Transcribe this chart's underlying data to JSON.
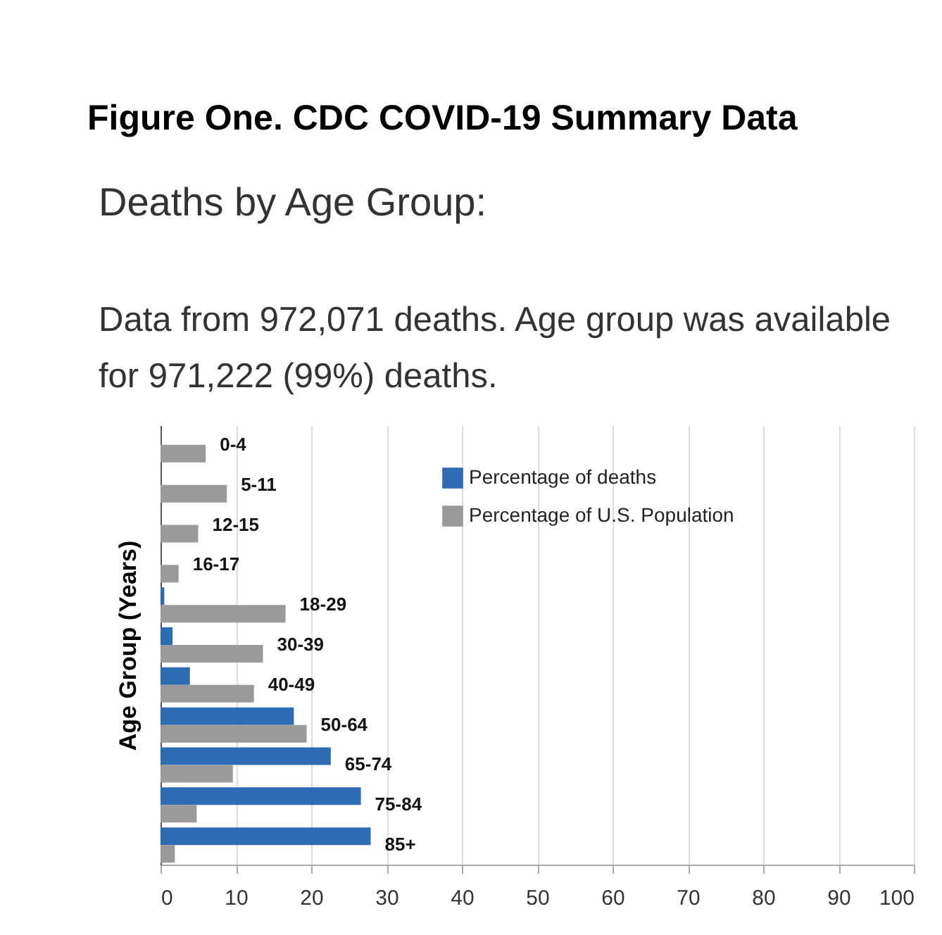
{
  "chart_data": {
    "type": "bar",
    "orientation": "horizontal",
    "title": "Figure One.  CDC COVID-19 Summary Data",
    "subtitle": "Deaths by Age Group:",
    "annotations": [
      "Data from 972,071 deaths. Age group was available for 971,222 (99%) deaths."
    ],
    "ylabel": "Age Group (Years)",
    "categories": [
      "0-4",
      "5-11",
      "12-15",
      "16-17",
      "18-29",
      "30-39",
      "40-49",
      "50-64",
      "65-74",
      "75-84",
      "85+"
    ],
    "series": [
      {
        "name": "Percentage of deaths",
        "color": "#2e6db4",
        "values": [
          0,
          0,
          0,
          0,
          0.5,
          1.6,
          3.9,
          17.7,
          22.6,
          26.6,
          27.9
        ]
      },
      {
        "name": "Percentage of U.S. Population",
        "color": "#9a9a9a",
        "values": [
          6.0,
          8.8,
          5.0,
          2.4,
          16.6,
          13.6,
          12.4,
          19.4,
          9.6,
          4.8,
          1.9
        ]
      }
    ],
    "xlim": [
      0,
      100
    ],
    "xticks": [
      0,
      10,
      20,
      30,
      40,
      50,
      60,
      70,
      80,
      90,
      100
    ],
    "grid": "x",
    "legend": "top right"
  }
}
